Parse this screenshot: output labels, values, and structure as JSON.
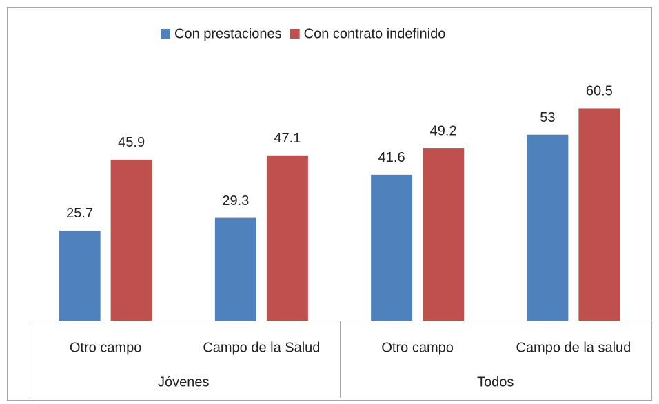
{
  "chart_data": {
    "type": "bar",
    "categories": [
      "Otro campo",
      "Campo de la Salud",
      "Otro campo",
      "Campo de la salud"
    ],
    "groups": [
      {
        "label": "Jóvenes",
        "span": 2
      },
      {
        "label": "Todos",
        "span": 2
      }
    ],
    "series": [
      {
        "name": "Con prestaciones",
        "color": "#4f81bd",
        "values": [
          25.7,
          29.3,
          41.6,
          53
        ]
      },
      {
        "name": "Con contrato indefinido",
        "color": "#c0504d",
        "values": [
          45.9,
          47.1,
          49.2,
          60.5
        ]
      }
    ],
    "ylim": [
      0,
      70
    ],
    "legend": "top"
  }
}
